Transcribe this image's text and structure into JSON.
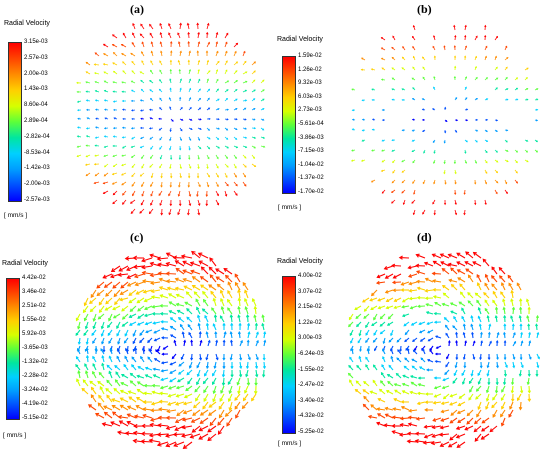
{
  "panels": [
    {
      "label": "(a)",
      "legend_title": "Radial Velocity",
      "units": "[ mm/s ]",
      "ticks": [
        "3.15e-03",
        "2.57e-03",
        "2.00e-03",
        "1.43e-03",
        "8.60e-04",
        "2.89e-04",
        "-2.82e-04",
        "-8.53e-04",
        "-1.42e-03",
        "-2.00e-03",
        "-2.57e-03"
      ]
    },
    {
      "label": "(b)",
      "legend_title": "Radial Velocity",
      "units": "[ mm/s ]",
      "ticks": [
        "1.59e-02",
        "1.26e-02",
        "9.32e-03",
        "6.03e-03",
        "2.73e-03",
        "-5.61e-04",
        "-3.86e-03",
        "-7.15e-03",
        "-1.04e-02",
        "-1.37e-02",
        "-1.70e-02"
      ]
    },
    {
      "label": "(c)",
      "legend_title": "Radial Velocity",
      "units": "[ mm/s ]",
      "ticks": [
        "4.42e-02",
        "3.46e-02",
        "2.51e-02",
        "1.55e-02",
        "5.92e-03",
        "-3.65e-03",
        "-1.32e-02",
        "-2.28e-02",
        "-3.24e-02",
        "-4.19e-02",
        "-5.15e-02"
      ]
    },
    {
      "label": "(d)",
      "legend_title": "Radial Velocity",
      "units": "[ mm/s ]",
      "ticks": [
        "4.00e-02",
        "3.07e-02",
        "2.15e-02",
        "1.22e-02",
        "3.00e-03",
        "-6.24e-03",
        "-1.55e-02",
        "-2.47e-02",
        "-3.40e-02",
        "-4.32e-02",
        "-5.25e-02"
      ]
    }
  ],
  "colormap": [
    "#ff0000",
    "#ff4500",
    "#ff8c00",
    "#ffd000",
    "#d6ff00",
    "#5cff3a",
    "#00e6a0",
    "#00d0ff",
    "#009dff",
    "#0050ff",
    "#0000ff"
  ]
}
